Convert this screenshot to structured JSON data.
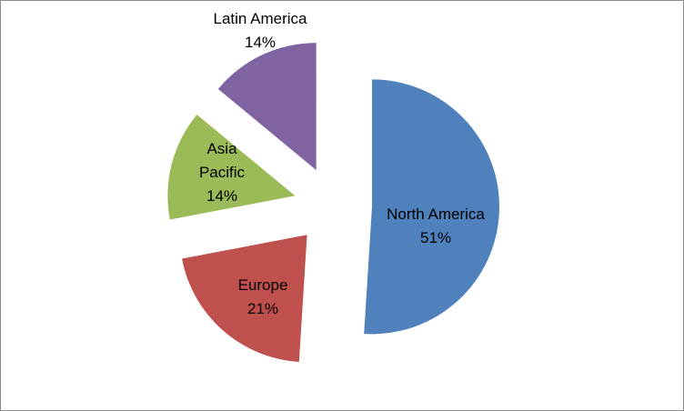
{
  "chart_data": {
    "type": "pie",
    "exploded": true,
    "start_angle_deg": 0,
    "direction": "clockwise",
    "slices": [
      {
        "name": "North America",
        "value": 51,
        "label": "51%",
        "color": "#4F81BD"
      },
      {
        "name": "Europe",
        "value": 21,
        "label": "21%",
        "color": "#C0504D"
      },
      {
        "name": "Asia Pacific",
        "value": 14,
        "label": "14%",
        "color": "#9BBB59"
      },
      {
        "name": "Latin America",
        "value": 14,
        "label": "14%",
        "color": "#8064A2"
      }
    ],
    "legend": "none",
    "title": ""
  }
}
